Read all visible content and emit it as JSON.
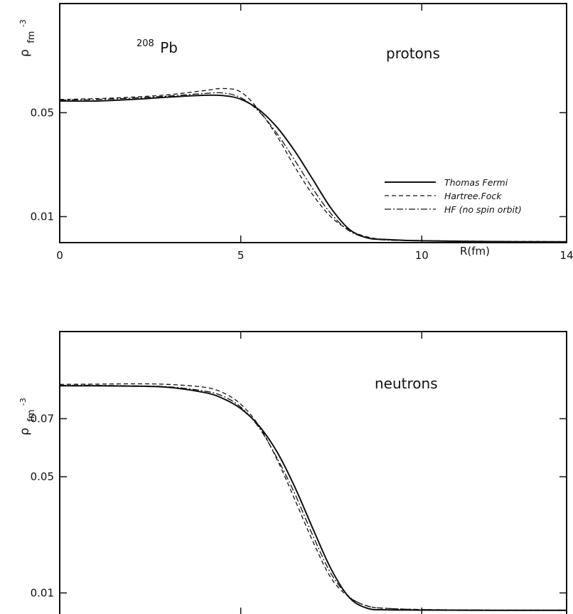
{
  "chart_data": [
    {
      "type": "line",
      "nucleus_mass_number": "208",
      "nucleus_symbol": "Pb",
      "annotation": "protons",
      "ylabel_symbol": "ρ",
      "ylabel_unit": "fm",
      "ylabel_exp": "-3",
      "xlabel": "R(fm)",
      "xlim": [
        0,
        14
      ],
      "ylim": [
        0,
        0.092
      ],
      "x_ticks": [
        0,
        5,
        10,
        14
      ],
      "x_tick_labels": [
        "0",
        "5",
        "10",
        "14"
      ],
      "y_ticks": [
        0.05,
        0.01
      ],
      "y_tick_labels": [
        "0.05",
        "0.01"
      ],
      "legend_position": "right",
      "series": [
        {
          "name": "Thomas Fermi",
          "style": "solid",
          "x": [
            0,
            1,
            2,
            3,
            4,
            4.5,
            5,
            5.5,
            6,
            6.5,
            7,
            7.5,
            8,
            8.5,
            9,
            10,
            12,
            14
          ],
          "y": [
            0.0545,
            0.0545,
            0.0551,
            0.056,
            0.0567,
            0.0566,
            0.0552,
            0.0512,
            0.0444,
            0.0351,
            0.0241,
            0.0131,
            0.0051,
            0.0018,
            0.0012,
            0.0007,
            0.0004,
            0.0003
          ]
        },
        {
          "name": "Hartree.Fock",
          "style": "dashed",
          "x": [
            0,
            1,
            2,
            3,
            4,
            4.5,
            5,
            5.5,
            6,
            6.5,
            7,
            7.5,
            8,
            8.5,
            9,
            10,
            12,
            14
          ],
          "y": [
            0.0551,
            0.0554,
            0.056,
            0.0569,
            0.0585,
            0.0593,
            0.058,
            0.051,
            0.041,
            0.029,
            0.0182,
            0.0098,
            0.0048,
            0.0022,
            0.0012,
            0.0008,
            0.0005,
            0.0004
          ]
        },
        {
          "name": "HF (no spin orbit)",
          "style": "dashdot",
          "x": [
            0,
            1,
            2,
            3,
            4,
            4.5,
            5,
            5.5,
            6,
            6.5,
            7,
            7.5,
            8,
            8.5,
            9,
            10,
            12,
            14
          ],
          "y": [
            0.0549,
            0.0551,
            0.0556,
            0.0564,
            0.0574,
            0.0576,
            0.0558,
            0.0505,
            0.042,
            0.0315,
            0.0205,
            0.011,
            0.0045,
            0.0018,
            0.001,
            0.0007,
            0.0004,
            0.0003
          ]
        }
      ]
    },
    {
      "type": "line",
      "annotation": "neutrons",
      "ylabel_symbol": "ρ",
      "ylabel_unit": "fm",
      "ylabel_exp": "-3",
      "xlim": [
        0,
        14
      ],
      "ylim": [
        0.0025,
        0.1
      ],
      "x_ticks": [
        5,
        10
      ],
      "y_ticks": [
        0.07,
        0.05,
        0.01
      ],
      "y_tick_labels": [
        "0.07",
        "0.05",
        "0.01"
      ],
      "series": [
        {
          "name": "Thomas Fermi",
          "style": "solid",
          "x": [
            0,
            1,
            2,
            3,
            4,
            4.5,
            5,
            5.5,
            6,
            6.5,
            7,
            7.5,
            8,
            8.5,
            9,
            10,
            12,
            14
          ],
          "y": [
            0.0813,
            0.0813,
            0.0812,
            0.0808,
            0.079,
            0.077,
            0.0735,
            0.0676,
            0.0586,
            0.0463,
            0.0319,
            0.0181,
            0.0084,
            0.0047,
            0.0042,
            0.0041,
            0.004,
            0.004
          ]
        },
        {
          "name": "Hartree.Fock",
          "style": "dashed",
          "x": [
            0,
            1,
            2,
            3,
            4,
            4.5,
            5,
            5.5,
            6,
            6.5,
            7,
            7.5,
            8,
            8.5,
            9,
            10,
            12,
            14
          ],
          "y": [
            0.0818,
            0.0819,
            0.082,
            0.0818,
            0.0808,
            0.079,
            0.075,
            0.0676,
            0.056,
            0.042,
            0.0275,
            0.015,
            0.0085,
            0.0055,
            0.0047,
            0.0043,
            0.0041,
            0.0041
          ]
        },
        {
          "name": "HF (no spin orbit)",
          "style": "dashdot",
          "x": [
            0,
            1,
            2,
            3,
            4,
            4.5,
            5,
            5.5,
            6,
            6.5,
            7,
            7.5,
            8,
            8.5,
            9,
            10,
            12,
            14
          ],
          "y": [
            0.0815,
            0.0815,
            0.0813,
            0.081,
            0.0795,
            0.0778,
            0.074,
            0.067,
            0.0565,
            0.044,
            0.0295,
            0.0165,
            0.0087,
            0.0055,
            0.0047,
            0.0043,
            0.0041,
            0.0041
          ]
        }
      ]
    }
  ]
}
